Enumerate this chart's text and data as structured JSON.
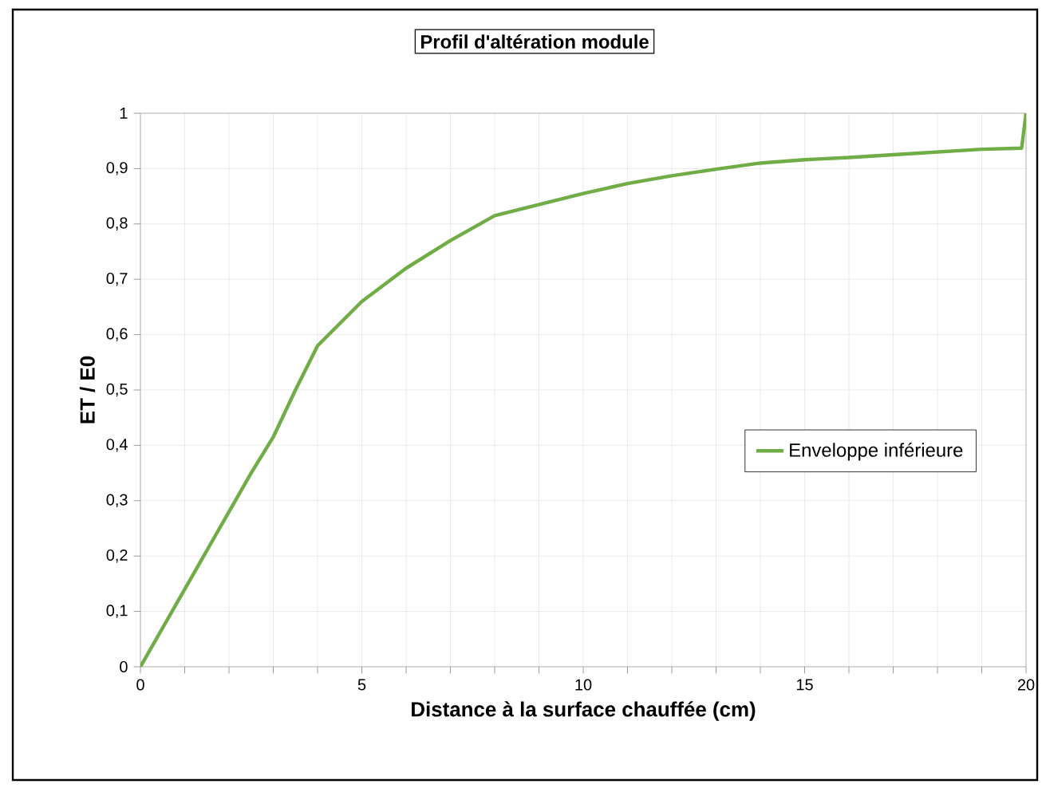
{
  "chart_data": {
    "type": "line",
    "title": "Profil d'altération module",
    "xlabel": "Distance à la surface chauffée (cm)",
    "ylabel": "ET / E0",
    "x": [
      0,
      0.5,
      1,
      1.5,
      2,
      2.5,
      3,
      3.5,
      4,
      4.5,
      5,
      5.5,
      6,
      6.5,
      7,
      8,
      9,
      10,
      11,
      12,
      13,
      14,
      15,
      16,
      17,
      18,
      19,
      19.9,
      20
    ],
    "series": [
      {
        "name": "Enveloppe inférieure",
        "color": "#70ad47",
        "values": [
          0,
          0.07,
          0.14,
          0.21,
          0.28,
          0.35,
          0.415,
          0.5,
          0.58,
          0.62,
          0.66,
          0.69,
          0.72,
          0.745,
          0.77,
          0.815,
          0.835,
          0.855,
          0.873,
          0.887,
          0.899,
          0.91,
          0.916,
          0.92,
          0.925,
          0.93,
          0.935,
          0.937,
          1.0
        ]
      }
    ],
    "xlim": [
      0,
      20
    ],
    "ylim": [
      0,
      1
    ],
    "xticks": [
      0,
      {
        "value": 1,
        "label": null
      },
      {
        "value": 2,
        "label": null
      },
      {
        "value": 3,
        "label": null
      },
      {
        "value": 4,
        "label": null
      },
      5,
      {
        "value": 6,
        "label": null
      },
      {
        "value": 7,
        "label": null
      },
      {
        "value": 8,
        "label": null
      },
      {
        "value": 9,
        "label": null
      },
      10,
      {
        "value": 11,
        "label": null
      },
      {
        "value": 12,
        "label": null
      },
      {
        "value": 13,
        "label": null
      },
      {
        "value": 14,
        "label": null
      },
      15,
      {
        "value": 16,
        "label": null
      },
      {
        "value": 17,
        "label": null
      },
      {
        "value": 18,
        "label": null
      },
      {
        "value": 19,
        "label": null
      },
      20
    ],
    "yticks": [
      0,
      {
        "value": 0.1,
        "label": "0,1"
      },
      {
        "value": 0.2,
        "label": "0,2"
      },
      {
        "value": 0.3,
        "label": "0,3"
      },
      {
        "value": 0.4,
        "label": "0,4"
      },
      {
        "value": 0.5,
        "label": "0,5"
      },
      {
        "value": 0.6,
        "label": "0,6"
      },
      {
        "value": 0.7,
        "label": "0,7"
      },
      {
        "value": 0.8,
        "label": "0,8"
      },
      {
        "value": 0.9,
        "label": "0,9"
      },
      1
    ],
    "grid": true,
    "legend": "right",
    "marker": "none",
    "line_style": "solid"
  }
}
